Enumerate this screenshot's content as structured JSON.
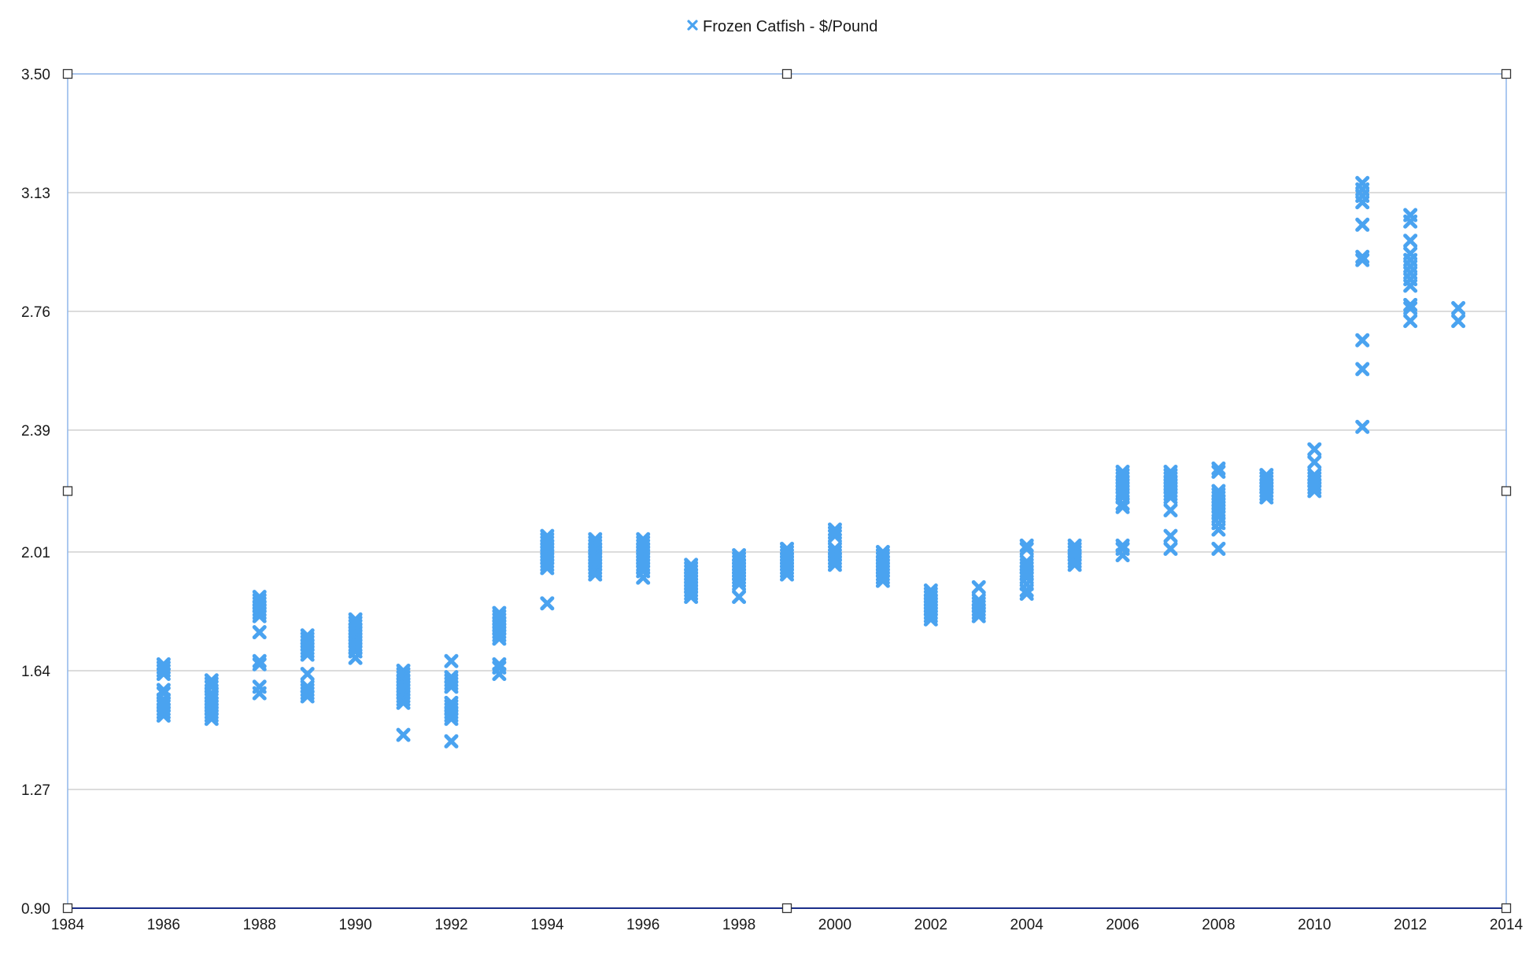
{
  "chart_data": {
    "type": "scatter",
    "title": "",
    "xlabel": "",
    "ylabel": "",
    "xlim": [
      1984,
      2014
    ],
    "ylim": [
      0.9,
      3.5
    ],
    "x_ticks": [
      "1984",
      "1986",
      "1988",
      "1990",
      "1992",
      "1994",
      "1996",
      "1998",
      "2000",
      "2002",
      "2004",
      "2006",
      "2008",
      "2010",
      "2012",
      "2014"
    ],
    "y_ticks": [
      "3.50",
      "3.13",
      "2.76",
      "2.39",
      "2.01",
      "1.64",
      "1.27",
      "0.90"
    ],
    "grid": true,
    "legend_position": "top-center",
    "marker_color": "#4aa3f0",
    "series": [
      {
        "name": "Frozen Catfish - $/Pound",
        "marker": "x",
        "points": [
          [
            1986,
            1.66
          ],
          [
            1986,
            1.65
          ],
          [
            1986,
            1.64
          ],
          [
            1986,
            1.63
          ],
          [
            1986,
            1.58
          ],
          [
            1986,
            1.57
          ],
          [
            1986,
            1.55
          ],
          [
            1986,
            1.54
          ],
          [
            1986,
            1.53
          ],
          [
            1986,
            1.52
          ],
          [
            1986,
            1.51
          ],
          [
            1986,
            1.5
          ],
          [
            1987,
            1.61
          ],
          [
            1987,
            1.6
          ],
          [
            1987,
            1.59
          ],
          [
            1987,
            1.57
          ],
          [
            1987,
            1.56
          ],
          [
            1987,
            1.55
          ],
          [
            1987,
            1.54
          ],
          [
            1987,
            1.53
          ],
          [
            1987,
            1.52
          ],
          [
            1987,
            1.51
          ],
          [
            1987,
            1.5
          ],
          [
            1987,
            1.49
          ],
          [
            1988,
            1.87
          ],
          [
            1988,
            1.86
          ],
          [
            1988,
            1.85
          ],
          [
            1988,
            1.84
          ],
          [
            1988,
            1.83
          ],
          [
            1988,
            1.82
          ],
          [
            1988,
            1.81
          ],
          [
            1988,
            1.76
          ],
          [
            1988,
            1.67
          ],
          [
            1988,
            1.66
          ],
          [
            1988,
            1.59
          ],
          [
            1988,
            1.57
          ],
          [
            1989,
            1.75
          ],
          [
            1989,
            1.74
          ],
          [
            1989,
            1.73
          ],
          [
            1989,
            1.72
          ],
          [
            1989,
            1.71
          ],
          [
            1989,
            1.7
          ],
          [
            1989,
            1.69
          ],
          [
            1989,
            1.63
          ],
          [
            1989,
            1.59
          ],
          [
            1989,
            1.58
          ],
          [
            1989,
            1.57
          ],
          [
            1989,
            1.56
          ],
          [
            1990,
            1.8
          ],
          [
            1990,
            1.79
          ],
          [
            1990,
            1.78
          ],
          [
            1990,
            1.77
          ],
          [
            1990,
            1.76
          ],
          [
            1990,
            1.75
          ],
          [
            1990,
            1.74
          ],
          [
            1990,
            1.73
          ],
          [
            1990,
            1.72
          ],
          [
            1990,
            1.71
          ],
          [
            1990,
            1.7
          ],
          [
            1990,
            1.68
          ],
          [
            1991,
            1.64
          ],
          [
            1991,
            1.63
          ],
          [
            1991,
            1.62
          ],
          [
            1991,
            1.61
          ],
          [
            1991,
            1.6
          ],
          [
            1991,
            1.59
          ],
          [
            1991,
            1.58
          ],
          [
            1991,
            1.57
          ],
          [
            1991,
            1.56
          ],
          [
            1991,
            1.55
          ],
          [
            1991,
            1.54
          ],
          [
            1991,
            1.44
          ],
          [
            1992,
            1.67
          ],
          [
            1992,
            1.62
          ],
          [
            1992,
            1.61
          ],
          [
            1992,
            1.6
          ],
          [
            1992,
            1.59
          ],
          [
            1992,
            1.54
          ],
          [
            1992,
            1.53
          ],
          [
            1992,
            1.52
          ],
          [
            1992,
            1.51
          ],
          [
            1992,
            1.5
          ],
          [
            1992,
            1.49
          ],
          [
            1992,
            1.42
          ],
          [
            1993,
            1.82
          ],
          [
            1993,
            1.81
          ],
          [
            1993,
            1.8
          ],
          [
            1993,
            1.79
          ],
          [
            1993,
            1.78
          ],
          [
            1993,
            1.77
          ],
          [
            1993,
            1.76
          ],
          [
            1993,
            1.75
          ],
          [
            1993,
            1.74
          ],
          [
            1993,
            1.66
          ],
          [
            1993,
            1.65
          ],
          [
            1993,
            1.63
          ],
          [
            1994,
            2.06
          ],
          [
            1994,
            2.05
          ],
          [
            1994,
            2.04
          ],
          [
            1994,
            2.03
          ],
          [
            1994,
            2.02
          ],
          [
            1994,
            2.01
          ],
          [
            1994,
            2.0
          ],
          [
            1994,
            1.99
          ],
          [
            1994,
            1.98
          ],
          [
            1994,
            1.97
          ],
          [
            1994,
            1.96
          ],
          [
            1994,
            1.85
          ],
          [
            1995,
            2.05
          ],
          [
            1995,
            2.04
          ],
          [
            1995,
            2.03
          ],
          [
            1995,
            2.02
          ],
          [
            1995,
            2.01
          ],
          [
            1995,
            2.0
          ],
          [
            1995,
            1.99
          ],
          [
            1995,
            1.98
          ],
          [
            1995,
            1.97
          ],
          [
            1995,
            1.96
          ],
          [
            1995,
            1.95
          ],
          [
            1995,
            1.94
          ],
          [
            1996,
            2.05
          ],
          [
            1996,
            2.04
          ],
          [
            1996,
            2.03
          ],
          [
            1996,
            2.02
          ],
          [
            1996,
            2.01
          ],
          [
            1996,
            2.0
          ],
          [
            1996,
            1.99
          ],
          [
            1996,
            1.98
          ],
          [
            1996,
            1.97
          ],
          [
            1996,
            1.96
          ],
          [
            1996,
            1.95
          ],
          [
            1996,
            1.93
          ],
          [
            1997,
            1.97
          ],
          [
            1997,
            1.96
          ],
          [
            1997,
            1.95
          ],
          [
            1997,
            1.94
          ],
          [
            1997,
            1.93
          ],
          [
            1997,
            1.92
          ],
          [
            1997,
            1.91
          ],
          [
            1997,
            1.9
          ],
          [
            1997,
            1.89
          ],
          [
            1997,
            1.88
          ],
          [
            1997,
            1.87
          ],
          [
            1998,
            2.0
          ],
          [
            1998,
            1.99
          ],
          [
            1998,
            1.98
          ],
          [
            1998,
            1.97
          ],
          [
            1998,
            1.96
          ],
          [
            1998,
            1.95
          ],
          [
            1998,
            1.94
          ],
          [
            1998,
            1.93
          ],
          [
            1998,
            1.92
          ],
          [
            1998,
            1.91
          ],
          [
            1998,
            1.87
          ],
          [
            1999,
            2.02
          ],
          [
            1999,
            2.01
          ],
          [
            1999,
            2.0
          ],
          [
            1999,
            1.99
          ],
          [
            1999,
            1.98
          ],
          [
            1999,
            1.97
          ],
          [
            1999,
            1.96
          ],
          [
            1999,
            1.95
          ],
          [
            1999,
            1.94
          ],
          [
            2000,
            2.08
          ],
          [
            2000,
            2.07
          ],
          [
            2000,
            2.06
          ],
          [
            2000,
            2.02
          ],
          [
            2000,
            2.01
          ],
          [
            2000,
            2.0
          ],
          [
            2000,
            1.99
          ],
          [
            2000,
            1.98
          ],
          [
            2000,
            1.97
          ],
          [
            2001,
            2.01
          ],
          [
            2001,
            2.0
          ],
          [
            2001,
            1.99
          ],
          [
            2001,
            1.98
          ],
          [
            2001,
            1.97
          ],
          [
            2001,
            1.96
          ],
          [
            2001,
            1.95
          ],
          [
            2001,
            1.94
          ],
          [
            2001,
            1.93
          ],
          [
            2001,
            1.92
          ],
          [
            2002,
            1.89
          ],
          [
            2002,
            1.88
          ],
          [
            2002,
            1.87
          ],
          [
            2002,
            1.86
          ],
          [
            2002,
            1.85
          ],
          [
            2002,
            1.84
          ],
          [
            2002,
            1.83
          ],
          [
            2002,
            1.82
          ],
          [
            2002,
            1.81
          ],
          [
            2002,
            1.8
          ],
          [
            2003,
            1.9
          ],
          [
            2003,
            1.86
          ],
          [
            2003,
            1.85
          ],
          [
            2003,
            1.84
          ],
          [
            2003,
            1.83
          ],
          [
            2003,
            1.82
          ],
          [
            2003,
            1.81
          ],
          [
            2004,
            2.03
          ],
          [
            2004,
            2.02
          ],
          [
            2004,
            1.98
          ],
          [
            2004,
            1.97
          ],
          [
            2004,
            1.96
          ],
          [
            2004,
            1.95
          ],
          [
            2004,
            1.94
          ],
          [
            2004,
            1.93
          ],
          [
            2004,
            1.91
          ],
          [
            2004,
            1.89
          ],
          [
            2004,
            1.88
          ],
          [
            2005,
            2.03
          ],
          [
            2005,
            2.02
          ],
          [
            2005,
            2.01
          ],
          [
            2005,
            2.0
          ],
          [
            2005,
            1.99
          ],
          [
            2005,
            1.98
          ],
          [
            2005,
            1.97
          ],
          [
            2006,
            2.26
          ],
          [
            2006,
            2.25
          ],
          [
            2006,
            2.24
          ],
          [
            2006,
            2.23
          ],
          [
            2006,
            2.22
          ],
          [
            2006,
            2.21
          ],
          [
            2006,
            2.2
          ],
          [
            2006,
            2.19
          ],
          [
            2006,
            2.18
          ],
          [
            2006,
            2.16
          ],
          [
            2006,
            2.15
          ],
          [
            2006,
            2.03
          ],
          [
            2006,
            2.02
          ],
          [
            2006,
            2.0
          ],
          [
            2007,
            2.26
          ],
          [
            2007,
            2.25
          ],
          [
            2007,
            2.24
          ],
          [
            2007,
            2.23
          ],
          [
            2007,
            2.22
          ],
          [
            2007,
            2.21
          ],
          [
            2007,
            2.2
          ],
          [
            2007,
            2.19
          ],
          [
            2007,
            2.18
          ],
          [
            2007,
            2.14
          ],
          [
            2007,
            2.06
          ],
          [
            2007,
            2.02
          ],
          [
            2008,
            2.27
          ],
          [
            2008,
            2.26
          ],
          [
            2008,
            2.2
          ],
          [
            2008,
            2.19
          ],
          [
            2008,
            2.18
          ],
          [
            2008,
            2.17
          ],
          [
            2008,
            2.16
          ],
          [
            2008,
            2.15
          ],
          [
            2008,
            2.14
          ],
          [
            2008,
            2.13
          ],
          [
            2008,
            2.12
          ],
          [
            2008,
            2.1
          ],
          [
            2008,
            2.08
          ],
          [
            2008,
            2.02
          ],
          [
            2009,
            2.25
          ],
          [
            2009,
            2.24
          ],
          [
            2009,
            2.23
          ],
          [
            2009,
            2.22
          ],
          [
            2009,
            2.21
          ],
          [
            2009,
            2.2
          ],
          [
            2009,
            2.19
          ],
          [
            2009,
            2.18
          ],
          [
            2010,
            2.33
          ],
          [
            2010,
            2.29
          ],
          [
            2010,
            2.25
          ],
          [
            2010,
            2.24
          ],
          [
            2010,
            2.23
          ],
          [
            2010,
            2.22
          ],
          [
            2010,
            2.21
          ],
          [
            2010,
            2.2
          ],
          [
            2011,
            3.16
          ],
          [
            2011,
            3.14
          ],
          [
            2011,
            3.12
          ],
          [
            2011,
            3.1
          ],
          [
            2011,
            3.03
          ],
          [
            2011,
            2.93
          ],
          [
            2011,
            2.92
          ],
          [
            2011,
            2.67
          ],
          [
            2011,
            2.58
          ],
          [
            2011,
            2.4
          ],
          [
            2012,
            3.06
          ],
          [
            2012,
            3.04
          ],
          [
            2012,
            2.98
          ],
          [
            2012,
            2.94
          ],
          [
            2012,
            2.92
          ],
          [
            2012,
            2.9
          ],
          [
            2012,
            2.88
          ],
          [
            2012,
            2.86
          ],
          [
            2012,
            2.84
          ],
          [
            2012,
            2.78
          ],
          [
            2012,
            2.77
          ],
          [
            2012,
            2.73
          ],
          [
            2013,
            2.77
          ],
          [
            2013,
            2.73
          ]
        ]
      }
    ]
  }
}
